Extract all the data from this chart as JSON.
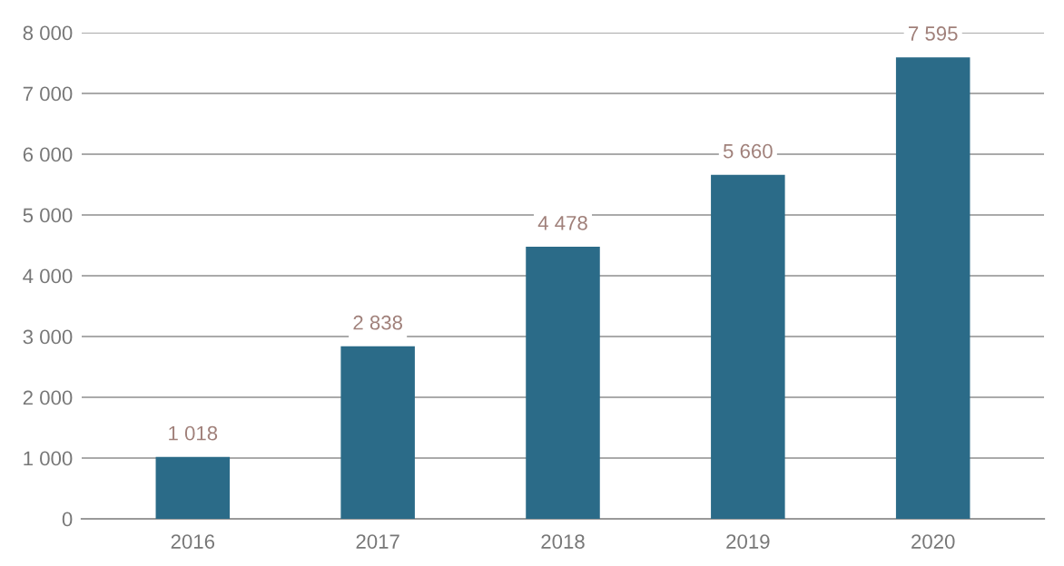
{
  "chart_data": {
    "type": "bar",
    "categories": [
      "2016",
      "2017",
      "2018",
      "2019",
      "2020"
    ],
    "values": [
      1018,
      2838,
      4478,
      5660,
      7595
    ],
    "value_labels": [
      "1 018",
      "2 838",
      "4 478",
      "5 660",
      "7 595"
    ],
    "color": "#2b6b88",
    "ylim": [
      0,
      8000
    ],
    "yticks": [
      0,
      {
        "value": 1000,
        "label": "1 000"
      },
      {
        "value": 2000,
        "label": "2 000"
      },
      {
        "value": 3000,
        "label": "3 000"
      },
      {
        "value": 4000,
        "label": "4 000"
      },
      {
        "value": 5000,
        "label": "5 000"
      },
      {
        "value": 6000,
        "label": "6 000"
      },
      {
        "value": 7000,
        "label": "7 000"
      },
      {
        "value": 8000,
        "label": "8 000"
      }
    ],
    "grid": "y"
  }
}
